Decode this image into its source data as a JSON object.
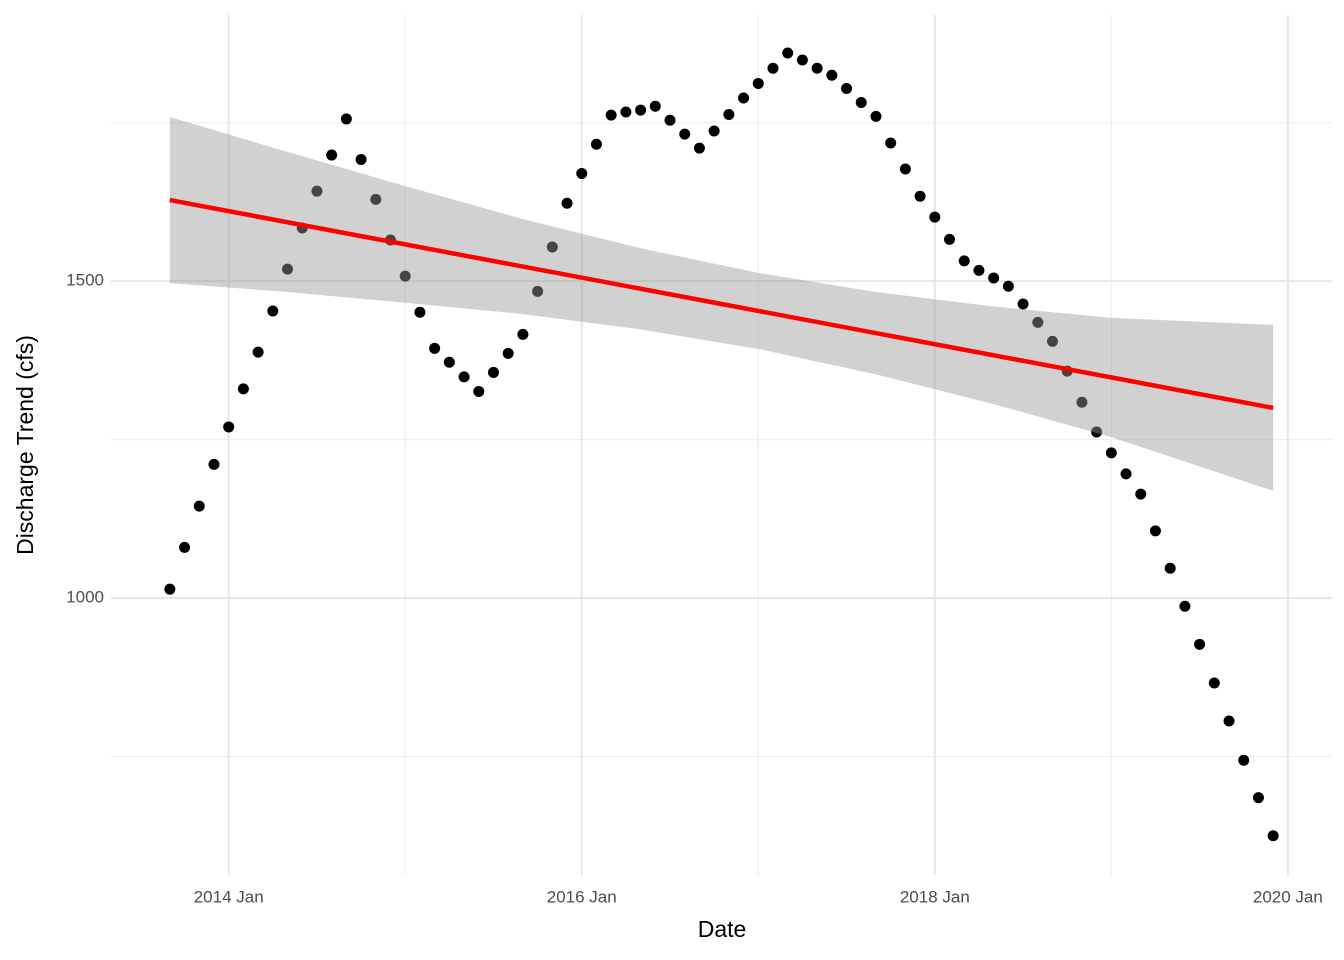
{
  "chart_data": {
    "type": "scatter",
    "x_label": "Date",
    "y_label": "Discharge Trend (cfs)",
    "x": [
      "2013-09",
      "2013-10",
      "2013-11",
      "2013-12",
      "2014-01",
      "2014-02",
      "2014-03",
      "2014-04",
      "2014-05",
      "2014-06",
      "2014-07",
      "2014-08",
      "2014-09",
      "2014-10",
      "2014-11",
      "2014-12",
      "2015-01",
      "2015-02",
      "2015-03",
      "2015-04",
      "2015-05",
      "2015-06",
      "2015-07",
      "2015-08",
      "2015-09",
      "2015-10",
      "2015-11",
      "2015-12",
      "2016-01",
      "2016-02",
      "2016-03",
      "2016-04",
      "2016-05",
      "2016-06",
      "2016-07",
      "2016-08",
      "2016-09",
      "2016-10",
      "2016-11",
      "2016-12",
      "2017-01",
      "2017-02",
      "2017-03",
      "2017-04",
      "2017-05",
      "2017-06",
      "2017-07",
      "2017-08",
      "2017-09",
      "2017-10",
      "2017-11",
      "2017-12",
      "2018-01",
      "2018-02",
      "2018-03",
      "2018-04",
      "2018-05",
      "2018-06",
      "2018-07",
      "2018-08",
      "2018-09",
      "2018-10",
      "2018-11",
      "2018-12",
      "2019-01",
      "2019-02",
      "2019-03",
      "2019-04",
      "2019-05",
      "2019-06",
      "2019-07",
      "2019-08",
      "2019-09",
      "2019-10",
      "2019-11",
      "2019-12"
    ],
    "values": [
      1014,
      1080,
      1145,
      1211,
      1270,
      1330,
      1388,
      1453,
      1519,
      1584,
      1642,
      1699,
      1756,
      1692,
      1629,
      1565,
      1508,
      1451,
      1394,
      1372,
      1349,
      1326,
      1356,
      1386,
      1416,
      1484,
      1554,
      1623,
      1670,
      1716,
      1762,
      1767,
      1770,
      1776,
      1754,
      1732,
      1710,
      1737,
      1763,
      1789,
      1812,
      1836,
      1860,
      1849,
      1836,
      1825,
      1804,
      1782,
      1760,
      1718,
      1677,
      1634,
      1601,
      1566,
      1532,
      1517,
      1505,
      1492,
      1464,
      1435,
      1405,
      1358,
      1309,
      1262,
      1229,
      1196,
      1164,
      1106,
      1047,
      987,
      927,
      866,
      806,
      744,
      685,
      625
    ],
    "color": "#000000",
    "trend": {
      "x": [
        "2013-09",
        "2019-12"
      ],
      "values": [
        1628,
        1300
      ],
      "color": "#ff0000"
    },
    "band": {
      "x": [
        "2013-09",
        "2014-05",
        "2015-01",
        "2015-09",
        "2016-05",
        "2017-01",
        "2017-09",
        "2018-05",
        "2019-01",
        "2019-12"
      ],
      "lower": [
        1497,
        1483,
        1466,
        1448,
        1424,
        1393,
        1353,
        1306,
        1254,
        1169
      ],
      "upper": [
        1759,
        1704,
        1650,
        1598,
        1552,
        1513,
        1483,
        1460,
        1442,
        1431
      ],
      "color": "#999999"
    },
    "xlim": [
      "2013-05",
      "2020-04"
    ],
    "ylim": [
      563,
      1920
    ],
    "xticks": [
      {
        "value": "2014-01",
        "label": "2014 Jan"
      },
      {
        "value": "2016-01",
        "label": "2016 Jan"
      },
      {
        "value": "2018-01",
        "label": "2018 Jan"
      },
      {
        "value": "2020-01",
        "label": "2020 Jan"
      }
    ],
    "xminor": [
      "2015-01",
      "2017-01",
      "2019-01"
    ],
    "yticks": [
      1000,
      1500
    ],
    "yminor": [
      750,
      1250,
      1750
    ],
    "grid": true
  }
}
